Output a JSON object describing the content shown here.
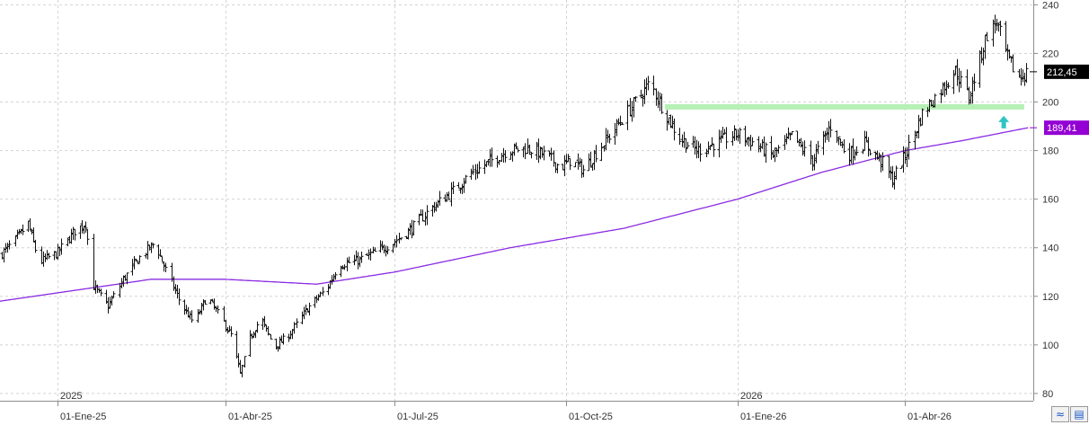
{
  "chart_data": {
    "type": "bar",
    "subtype": "ohlc",
    "title": "",
    "xlabel": "",
    "ylabel": "",
    "ylim": [
      77,
      242
    ],
    "yticks": [
      80,
      100,
      120,
      140,
      160,
      180,
      200,
      220,
      240
    ],
    "ytick_labels": [
      "80",
      "100",
      "120",
      "140",
      "160",
      "180",
      "200",
      "220",
      "240"
    ],
    "x_date_range": [
      "2024-12-01",
      "2026-06-05"
    ],
    "date_ticks": [
      {
        "date": "2025-01-01",
        "label": "01-Ene-25",
        "year_label": "2025"
      },
      {
        "date": "2025-04-01",
        "label": "01-Abr-25",
        "year_label": ""
      },
      {
        "date": "2025-07-01",
        "label": "01-Jul-25",
        "year_label": ""
      },
      {
        "date": "2025-10-01",
        "label": "01-Oct-25",
        "year_label": ""
      },
      {
        "date": "2026-01-01",
        "label": "01-Ene-26",
        "year_label": "2026"
      },
      {
        "date": "2026-04-01",
        "label": "01-Abr-26",
        "year_label": ""
      }
    ],
    "price_anchors": [
      [
        "2024-12-01",
        137
      ],
      [
        "2024-12-08",
        142
      ],
      [
        "2024-12-16",
        150
      ],
      [
        "2024-12-22",
        134
      ],
      [
        "2025-01-01",
        138
      ],
      [
        "2025-01-10",
        147
      ],
      [
        "2025-01-16",
        150
      ],
      [
        "2025-01-20",
        124
      ],
      [
        "2025-01-28",
        116
      ],
      [
        "2025-02-05",
        127
      ],
      [
        "2025-02-15",
        137
      ],
      [
        "2025-02-22",
        142
      ],
      [
        "2025-03-01",
        129
      ],
      [
        "2025-03-08",
        117
      ],
      [
        "2025-03-15",
        109
      ],
      [
        "2025-03-22",
        120
      ],
      [
        "2025-03-28",
        113
      ],
      [
        "2025-04-04",
        104
      ],
      [
        "2025-04-09",
        88
      ],
      [
        "2025-04-14",
        103
      ],
      [
        "2025-04-20",
        111
      ],
      [
        "2025-04-27",
        99
      ],
      [
        "2025-05-05",
        104
      ],
      [
        "2025-05-15",
        115
      ],
      [
        "2025-05-25",
        123
      ],
      [
        "2025-06-01",
        133
      ],
      [
        "2025-06-12",
        135
      ],
      [
        "2025-06-20",
        138
      ],
      [
        "2025-06-30",
        142
      ],
      [
        "2025-07-10",
        148
      ],
      [
        "2025-07-20",
        156
      ],
      [
        "2025-07-30",
        162
      ],
      [
        "2025-08-10",
        170
      ],
      [
        "2025-08-20",
        175
      ],
      [
        "2025-08-30",
        180
      ],
      [
        "2025-09-10",
        181
      ],
      [
        "2025-09-20",
        178
      ],
      [
        "2025-09-28",
        173
      ],
      [
        "2025-10-03",
        176
      ],
      [
        "2025-10-10",
        172
      ],
      [
        "2025-10-20",
        182
      ],
      [
        "2025-10-30",
        192
      ],
      [
        "2025-11-07",
        200
      ],
      [
        "2025-11-15",
        208
      ],
      [
        "2025-11-22",
        197
      ],
      [
        "2025-12-01",
        185
      ],
      [
        "2025-12-10",
        180
      ],
      [
        "2025-12-20",
        183
      ],
      [
        "2026-01-01",
        187
      ],
      [
        "2026-01-10",
        183
      ],
      [
        "2026-01-20",
        178
      ],
      [
        "2026-01-30",
        186
      ],
      [
        "2026-02-10",
        176
      ],
      [
        "2026-02-20",
        190
      ],
      [
        "2026-03-01",
        178
      ],
      [
        "2026-03-10",
        183
      ],
      [
        "2026-03-20",
        175
      ],
      [
        "2026-03-25",
        168
      ],
      [
        "2026-04-01",
        178
      ],
      [
        "2026-04-10",
        195
      ],
      [
        "2026-04-20",
        205
      ],
      [
        "2026-04-28",
        213
      ],
      [
        "2026-05-05",
        202
      ],
      [
        "2026-05-15",
        228
      ],
      [
        "2026-05-20",
        233
      ],
      [
        "2026-05-26",
        218
      ],
      [
        "2026-06-01",
        210
      ],
      [
        "2026-06-05",
        212
      ]
    ],
    "ma_anchors": [
      [
        "2024-12-01",
        118
      ],
      [
        "2025-02-20",
        127
      ],
      [
        "2025-04-01",
        127
      ],
      [
        "2025-05-20",
        125
      ],
      [
        "2025-07-01",
        130
      ],
      [
        "2025-09-01",
        140
      ],
      [
        "2025-11-01",
        148
      ],
      [
        "2026-01-01",
        160
      ],
      [
        "2026-02-15",
        171
      ],
      [
        "2026-04-01",
        180
      ],
      [
        "2026-05-01",
        184
      ],
      [
        "2026-06-06",
        189.41
      ]
    ],
    "series": [
      {
        "style": "ohlc-bars",
        "color": "#111111"
      },
      {
        "style": "moving-average",
        "color": "#8a2be2"
      }
    ],
    "support_zone": {
      "price": 198,
      "start": "2025-11-23",
      "end": "2026-06-04",
      "color": "#b6f0b6"
    },
    "arrow": {
      "date": "2026-05-24",
      "price": 191,
      "color": "#2ec4c4"
    },
    "last_price": {
      "value": 212.45,
      "label": "212,45",
      "color": "#000000"
    },
    "ma_value": {
      "value": 189.41,
      "label": "189,41",
      "color": "#9400d3"
    },
    "grid": true,
    "grid_color": "#d4d4d4"
  },
  "ui": {
    "fit_icon": "zoom-fit-icon",
    "save_icon": "save-icon",
    "fit_glyph": "≈",
    "save_glyph": "▤"
  }
}
